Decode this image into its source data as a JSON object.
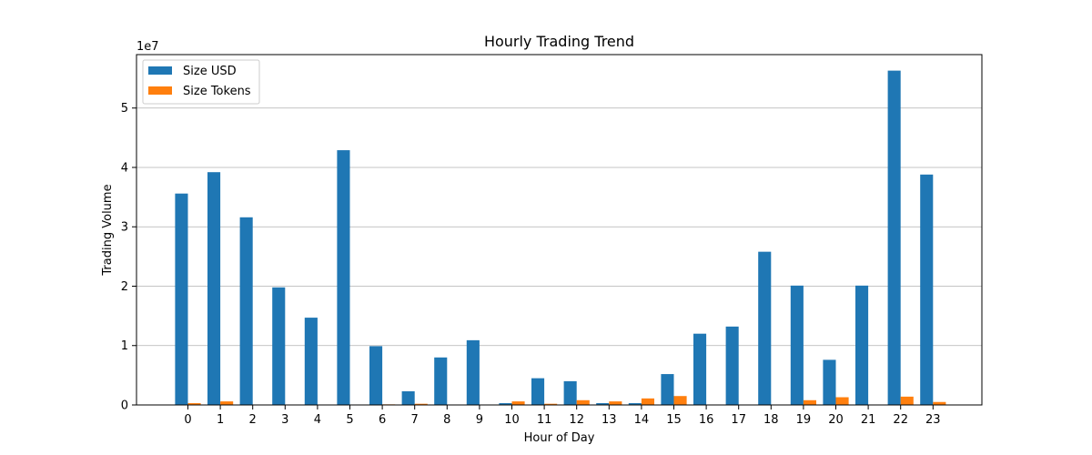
{
  "chart_data": {
    "type": "bar",
    "title": "Hourly Trading Trend",
    "xlabel": "Hour of Day",
    "ylabel": "Trading Volume",
    "y_multiplier_label": "1e7",
    "y_scale": 10000000,
    "categories": [
      "0",
      "1",
      "2",
      "3",
      "4",
      "5",
      "6",
      "7",
      "8",
      "9",
      "10",
      "11",
      "12",
      "13",
      "14",
      "15",
      "16",
      "17",
      "18",
      "19",
      "20",
      "21",
      "22",
      "23"
    ],
    "ylim": [
      0,
      59000000
    ],
    "yticks": [
      0,
      10000000,
      20000000,
      30000000,
      40000000,
      50000000
    ],
    "ytick_labels": [
      "0",
      "1",
      "2",
      "3",
      "4",
      "5"
    ],
    "grid": "y",
    "legend_position": "top-left",
    "series": [
      {
        "name": "Size USD",
        "color": "#1f77b4",
        "values": [
          35600000,
          39200000,
          31600000,
          19800000,
          14700000,
          42900000,
          9900000,
          2300000,
          8000000,
          10900000,
          300000,
          4500000,
          4000000,
          300000,
          300000,
          5200000,
          12000000,
          13200000,
          25800000,
          20100000,
          7600000,
          20100000,
          56300000,
          38800000
        ]
      },
      {
        "name": "Size Tokens",
        "color": "#ff7f0e",
        "values": [
          300000,
          600000,
          0,
          0,
          0,
          0,
          100000,
          200000,
          0,
          0,
          600000,
          200000,
          800000,
          600000,
          1100000,
          1500000,
          0,
          0,
          0,
          800000,
          1300000,
          0,
          1400000,
          500000
        ]
      }
    ]
  }
}
